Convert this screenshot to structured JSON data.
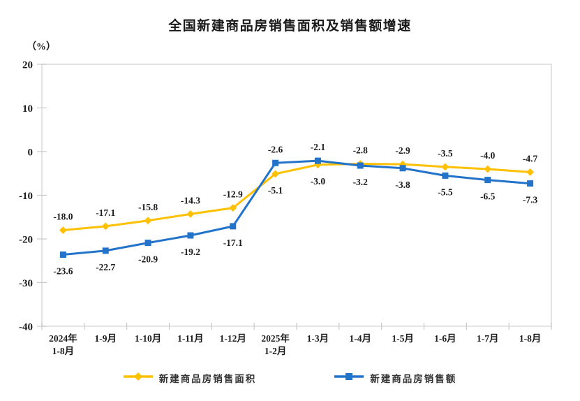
{
  "chart_data": {
    "type": "line",
    "title": "全国新建商品房销售面积及销售额增速",
    "unit_label": "（%）",
    "categories": [
      [
        "2024年",
        "1-8月"
      ],
      [
        "1-9月"
      ],
      [
        "1-10月"
      ],
      [
        "1-11月"
      ],
      [
        "1-12月"
      ],
      [
        "2025年",
        "1-2月"
      ],
      [
        "1-3月"
      ],
      [
        "1-4月"
      ],
      [
        "1-5月"
      ],
      [
        "1-6月"
      ],
      [
        "1-7月"
      ],
      [
        "1-8月"
      ]
    ],
    "series": [
      {
        "name": "新建商品房销售面积",
        "marker": "diamond",
        "color": "#FFC000",
        "values": [
          -18.0,
          -17.1,
          -15.8,
          -14.3,
          -12.9,
          -5.1,
          -3.0,
          -2.8,
          -2.9,
          -3.5,
          -4.0,
          -4.7
        ]
      },
      {
        "name": "新建商品房销售额",
        "marker": "square",
        "color": "#2273C9",
        "values": [
          -23.6,
          -22.7,
          -20.9,
          -19.2,
          -17.1,
          -2.6,
          -2.1,
          -3.2,
          -3.8,
          -5.5,
          -6.5,
          -7.3
        ]
      }
    ],
    "ylim": [
      -40,
      20
    ],
    "yticks": [
      20,
      10,
      0,
      -10,
      -20,
      -30,
      -40
    ],
    "value_decimals": 1,
    "grid": false,
    "legend_position": "bottom",
    "colors": {
      "axis": "#c9c9c9",
      "border": "#dadada",
      "text": "#1c1c1c"
    }
  }
}
